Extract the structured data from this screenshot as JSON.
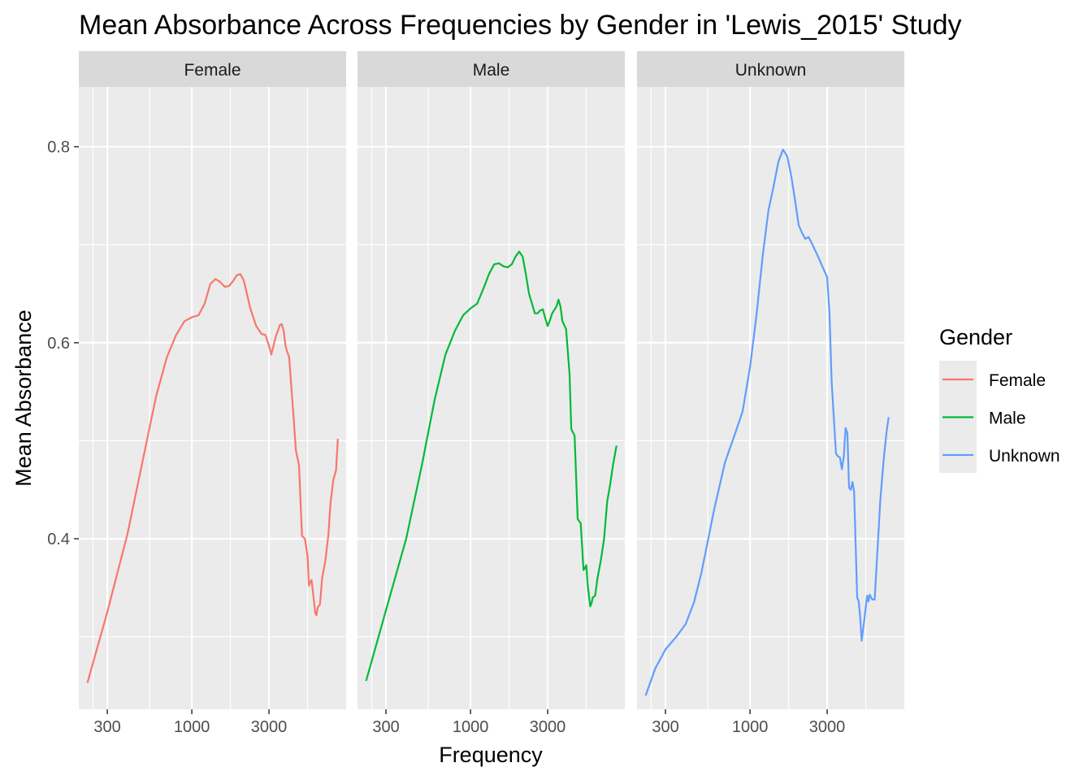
{
  "chart_data": {
    "type": "line",
    "title": "Mean Absorbance Across Frequencies by Gender in 'Lewis_2015' Study",
    "xlabel": "Frequency",
    "ylabel": "Mean Absorbance",
    "x_scale": "log10",
    "xlim": [
      200,
      9000
    ],
    "ylim": [
      0.226,
      0.861
    ],
    "x_ticks": [
      300,
      1000,
      3000
    ],
    "x_tick_labels": [
      "300",
      "1000",
      "3000"
    ],
    "y_ticks": [
      0.4,
      0.6,
      0.8
    ],
    "y_tick_labels": [
      "0.4",
      "0.6",
      "0.8"
    ],
    "grid": true,
    "facets": [
      "Female",
      "Male",
      "Unknown"
    ],
    "legend": {
      "title": "Gender",
      "placement": "right",
      "entries": [
        "Female",
        "Male",
        "Unknown"
      ]
    },
    "series": [
      {
        "name": "Female",
        "color": "#F8766D",
        "points": [
          [
            226,
            0.253
          ],
          [
            300,
            0.325
          ],
          [
            400,
            0.405
          ],
          [
            500,
            0.482
          ],
          [
            600,
            0.545
          ],
          [
            700,
            0.585
          ],
          [
            800,
            0.608
          ],
          [
            900,
            0.622
          ],
          [
            1000,
            0.626
          ],
          [
            1100,
            0.628
          ],
          [
            1200,
            0.64
          ],
          [
            1300,
            0.66
          ],
          [
            1400,
            0.665
          ],
          [
            1500,
            0.662
          ],
          [
            1600,
            0.657
          ],
          [
            1700,
            0.658
          ],
          [
            1800,
            0.663
          ],
          [
            1900,
            0.669
          ],
          [
            2000,
            0.67
          ],
          [
            2100,
            0.663
          ],
          [
            2300,
            0.635
          ],
          [
            2500,
            0.617
          ],
          [
            2700,
            0.609
          ],
          [
            2850,
            0.608
          ],
          [
            3000,
            0.597
          ],
          [
            3100,
            0.588
          ],
          [
            3200,
            0.597
          ],
          [
            3300,
            0.606
          ],
          [
            3400,
            0.612
          ],
          [
            3500,
            0.618
          ],
          [
            3600,
            0.619
          ],
          [
            3700,
            0.612
          ],
          [
            3800,
            0.596
          ],
          [
            4000,
            0.585
          ],
          [
            4200,
            0.538
          ],
          [
            4400,
            0.49
          ],
          [
            4600,
            0.475
          ],
          [
            4800,
            0.403
          ],
          [
            5000,
            0.4
          ],
          [
            5200,
            0.382
          ],
          [
            5300,
            0.352
          ],
          [
            5400,
            0.356
          ],
          [
            5500,
            0.358
          ],
          [
            5700,
            0.336
          ],
          [
            5800,
            0.324
          ],
          [
            5900,
            0.322
          ],
          [
            6000,
            0.33
          ],
          [
            6200,
            0.333
          ],
          [
            6400,
            0.36
          ],
          [
            6700,
            0.378
          ],
          [
            7000,
            0.405
          ],
          [
            7200,
            0.436
          ],
          [
            7500,
            0.46
          ],
          [
            7800,
            0.47
          ],
          [
            8000,
            0.502
          ]
        ]
      },
      {
        "name": "Male",
        "color": "#00BA38",
        "points": [
          [
            226,
            0.255
          ],
          [
            300,
            0.327
          ],
          [
            400,
            0.4
          ],
          [
            500,
            0.475
          ],
          [
            600,
            0.542
          ],
          [
            700,
            0.588
          ],
          [
            800,
            0.612
          ],
          [
            900,
            0.628
          ],
          [
            1000,
            0.635
          ],
          [
            1100,
            0.64
          ],
          [
            1200,
            0.655
          ],
          [
            1300,
            0.67
          ],
          [
            1400,
            0.68
          ],
          [
            1500,
            0.681
          ],
          [
            1600,
            0.678
          ],
          [
            1700,
            0.677
          ],
          [
            1800,
            0.68
          ],
          [
            1900,
            0.688
          ],
          [
            2000,
            0.693
          ],
          [
            2100,
            0.688
          ],
          [
            2200,
            0.67
          ],
          [
            2300,
            0.65
          ],
          [
            2500,
            0.63
          ],
          [
            2600,
            0.63
          ],
          [
            2700,
            0.633
          ],
          [
            2800,
            0.634
          ],
          [
            2900,
            0.625
          ],
          [
            3000,
            0.617
          ],
          [
            3100,
            0.623
          ],
          [
            3200,
            0.63
          ],
          [
            3400,
            0.637
          ],
          [
            3500,
            0.644
          ],
          [
            3600,
            0.637
          ],
          [
            3700,
            0.622
          ],
          [
            3900,
            0.614
          ],
          [
            4100,
            0.568
          ],
          [
            4200,
            0.512
          ],
          [
            4400,
            0.505
          ],
          [
            4600,
            0.42
          ],
          [
            4800,
            0.416
          ],
          [
            5000,
            0.368
          ],
          [
            5100,
            0.37
          ],
          [
            5200,
            0.373
          ],
          [
            5300,
            0.354
          ],
          [
            5500,
            0.331
          ],
          [
            5600,
            0.334
          ],
          [
            5700,
            0.34
          ],
          [
            5900,
            0.342
          ],
          [
            6100,
            0.36
          ],
          [
            6400,
            0.378
          ],
          [
            6700,
            0.4
          ],
          [
            7000,
            0.438
          ],
          [
            7300,
            0.455
          ],
          [
            7600,
            0.475
          ],
          [
            8000,
            0.495
          ]
        ]
      },
      {
        "name": "Unknown",
        "color": "#619CFF",
        "points": [
          [
            226,
            0.24
          ],
          [
            260,
            0.268
          ],
          [
            300,
            0.287
          ],
          [
            350,
            0.3
          ],
          [
            400,
            0.313
          ],
          [
            450,
            0.335
          ],
          [
            500,
            0.365
          ],
          [
            600,
            0.43
          ],
          [
            700,
            0.478
          ],
          [
            800,
            0.505
          ],
          [
            900,
            0.53
          ],
          [
            1000,
            0.575
          ],
          [
            1100,
            0.63
          ],
          [
            1200,
            0.69
          ],
          [
            1300,
            0.735
          ],
          [
            1400,
            0.76
          ],
          [
            1500,
            0.785
          ],
          [
            1600,
            0.797
          ],
          [
            1700,
            0.79
          ],
          [
            1800,
            0.77
          ],
          [
            1900,
            0.745
          ],
          [
            2000,
            0.72
          ],
          [
            2100,
            0.712
          ],
          [
            2200,
            0.706
          ],
          [
            2300,
            0.708
          ],
          [
            2400,
            0.702
          ],
          [
            2600,
            0.69
          ],
          [
            2800,
            0.678
          ],
          [
            3000,
            0.667
          ],
          [
            3100,
            0.63
          ],
          [
            3200,
            0.56
          ],
          [
            3400,
            0.487
          ],
          [
            3500,
            0.484
          ],
          [
            3600,
            0.483
          ],
          [
            3700,
            0.471
          ],
          [
            3800,
            0.484
          ],
          [
            3900,
            0.513
          ],
          [
            4000,
            0.508
          ],
          [
            4100,
            0.452
          ],
          [
            4200,
            0.45
          ],
          [
            4300,
            0.458
          ],
          [
            4400,
            0.448
          ],
          [
            4600,
            0.34
          ],
          [
            4700,
            0.336
          ],
          [
            4800,
            0.32
          ],
          [
            4900,
            0.296
          ],
          [
            5100,
            0.318
          ],
          [
            5300,
            0.342
          ],
          [
            5400,
            0.336
          ],
          [
            5500,
            0.343
          ],
          [
            5700,
            0.338
          ],
          [
            5900,
            0.338
          ],
          [
            6100,
            0.38
          ],
          [
            6400,
            0.44
          ],
          [
            6700,
            0.48
          ],
          [
            7000,
            0.51
          ],
          [
            7200,
            0.524
          ]
        ]
      }
    ]
  }
}
